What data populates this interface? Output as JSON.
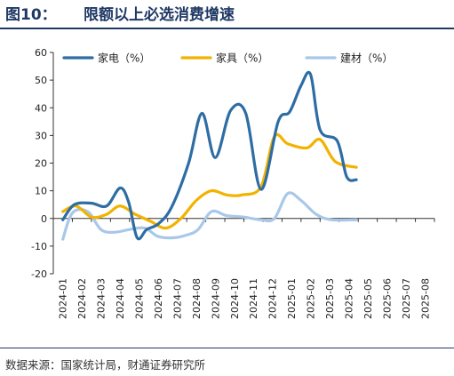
{
  "figure": {
    "number": "图10：",
    "title": "限额以上必选消费增速",
    "source": "数据来源：国家统计局，财通证券研究所"
  },
  "chart_data": {
    "type": "line",
    "x": [
      "2024-01",
      "2024-02",
      "2024-03",
      "2024-04",
      "2024-05",
      "2024-06",
      "2024-07",
      "2024-08",
      "2024-09",
      "2024-10",
      "2024-11",
      "2024-12",
      "2025-01",
      "2025-02",
      "2025-03",
      "2025-04",
      "2025-05",
      "2025-06",
      "2025-07",
      "2025-08"
    ],
    "xlabel": "",
    "ylabel": "",
    "ylim": [
      -20,
      60
    ],
    "yticks": [
      -20,
      -10,
      0,
      10,
      20,
      30,
      40,
      50,
      60
    ],
    "grid": false,
    "legend_position": "top",
    "series": [
      {
        "name": "家电（%）",
        "color": "#2e6da4",
        "points": [
          {
            "x": 1.0,
            "y": -0.5
          },
          {
            "x": 1.6,
            "y": 5.0
          },
          {
            "x": 2.5,
            "y": 5.5
          },
          {
            "x": 3.3,
            "y": 4.5
          },
          {
            "x": 4.0,
            "y": 11.0
          },
          {
            "x": 4.45,
            "y": 6.0
          },
          {
            "x": 4.9,
            "y": -7.0
          },
          {
            "x": 5.4,
            "y": -4.0
          },
          {
            "x": 6.0,
            "y": -2.0
          },
          {
            "x": 6.7,
            "y": 4.0
          },
          {
            "x": 7.6,
            "y": 20.0
          },
          {
            "x": 8.3,
            "y": 38.0
          },
          {
            "x": 9.0,
            "y": 22.0
          },
          {
            "x": 9.8,
            "y": 39.0
          },
          {
            "x": 10.6,
            "y": 38.0
          },
          {
            "x": 11.4,
            "y": 10.5
          },
          {
            "x": 12.3,
            "y": 35.0
          },
          {
            "x": 12.9,
            "y": 38.5
          },
          {
            "x": 13.5,
            "y": 48.0
          },
          {
            "x": 14.0,
            "y": 52.0
          },
          {
            "x": 14.5,
            "y": 32.0
          },
          {
            "x": 15.4,
            "y": 28.0
          },
          {
            "x": 15.9,
            "y": 15.0
          },
          {
            "x": 16.4,
            "y": 14.0
          }
        ]
      },
      {
        "name": "家具（%）",
        "color": "#f2b200",
        "points": [
          {
            "x": 1.0,
            "y": 2.5
          },
          {
            "x": 1.7,
            "y": 4.5
          },
          {
            "x": 2.5,
            "y": 0.5
          },
          {
            "x": 3.3,
            "y": 1.5
          },
          {
            "x": 4.0,
            "y": 4.5
          },
          {
            "x": 4.8,
            "y": 1.5
          },
          {
            "x": 5.6,
            "y": -1.0
          },
          {
            "x": 6.4,
            "y": -3.5
          },
          {
            "x": 7.2,
            "y": 0.0
          },
          {
            "x": 8.0,
            "y": 6.5
          },
          {
            "x": 8.8,
            "y": 10.0
          },
          {
            "x": 9.6,
            "y": 8.5
          },
          {
            "x": 10.4,
            "y": 8.5
          },
          {
            "x": 11.4,
            "y": 11.5
          },
          {
            "x": 12.1,
            "y": 29.5
          },
          {
            "x": 12.8,
            "y": 27.0
          },
          {
            "x": 13.8,
            "y": 25.5
          },
          {
            "x": 14.5,
            "y": 28.5
          },
          {
            "x": 15.3,
            "y": 20.5
          },
          {
            "x": 16.4,
            "y": 18.5
          }
        ]
      },
      {
        "name": "建材（%）",
        "color": "#a8c8e8",
        "points": [
          {
            "x": 1.0,
            "y": -7.5
          },
          {
            "x": 1.5,
            "y": 2.0
          },
          {
            "x": 2.3,
            "y": 2.5
          },
          {
            "x": 3.0,
            "y": -4.0
          },
          {
            "x": 3.7,
            "y": -5.0
          },
          {
            "x": 4.5,
            "y": -4.0
          },
          {
            "x": 5.3,
            "y": -3.5
          },
          {
            "x": 6.0,
            "y": -6.5
          },
          {
            "x": 6.8,
            "y": -7.0
          },
          {
            "x": 7.5,
            "y": -6.0
          },
          {
            "x": 8.1,
            "y": -4.0
          },
          {
            "x": 8.8,
            "y": 2.5
          },
          {
            "x": 9.6,
            "y": 1.0
          },
          {
            "x": 10.5,
            "y": 0.5
          },
          {
            "x": 11.4,
            "y": -0.5
          },
          {
            "x": 12.1,
            "y": 0.0
          },
          {
            "x": 12.8,
            "y": 9.0
          },
          {
            "x": 13.5,
            "y": 6.5
          },
          {
            "x": 14.3,
            "y": 1.5
          },
          {
            "x": 15.1,
            "y": -0.5
          },
          {
            "x": 16.4,
            "y": -0.5
          }
        ]
      }
    ]
  }
}
